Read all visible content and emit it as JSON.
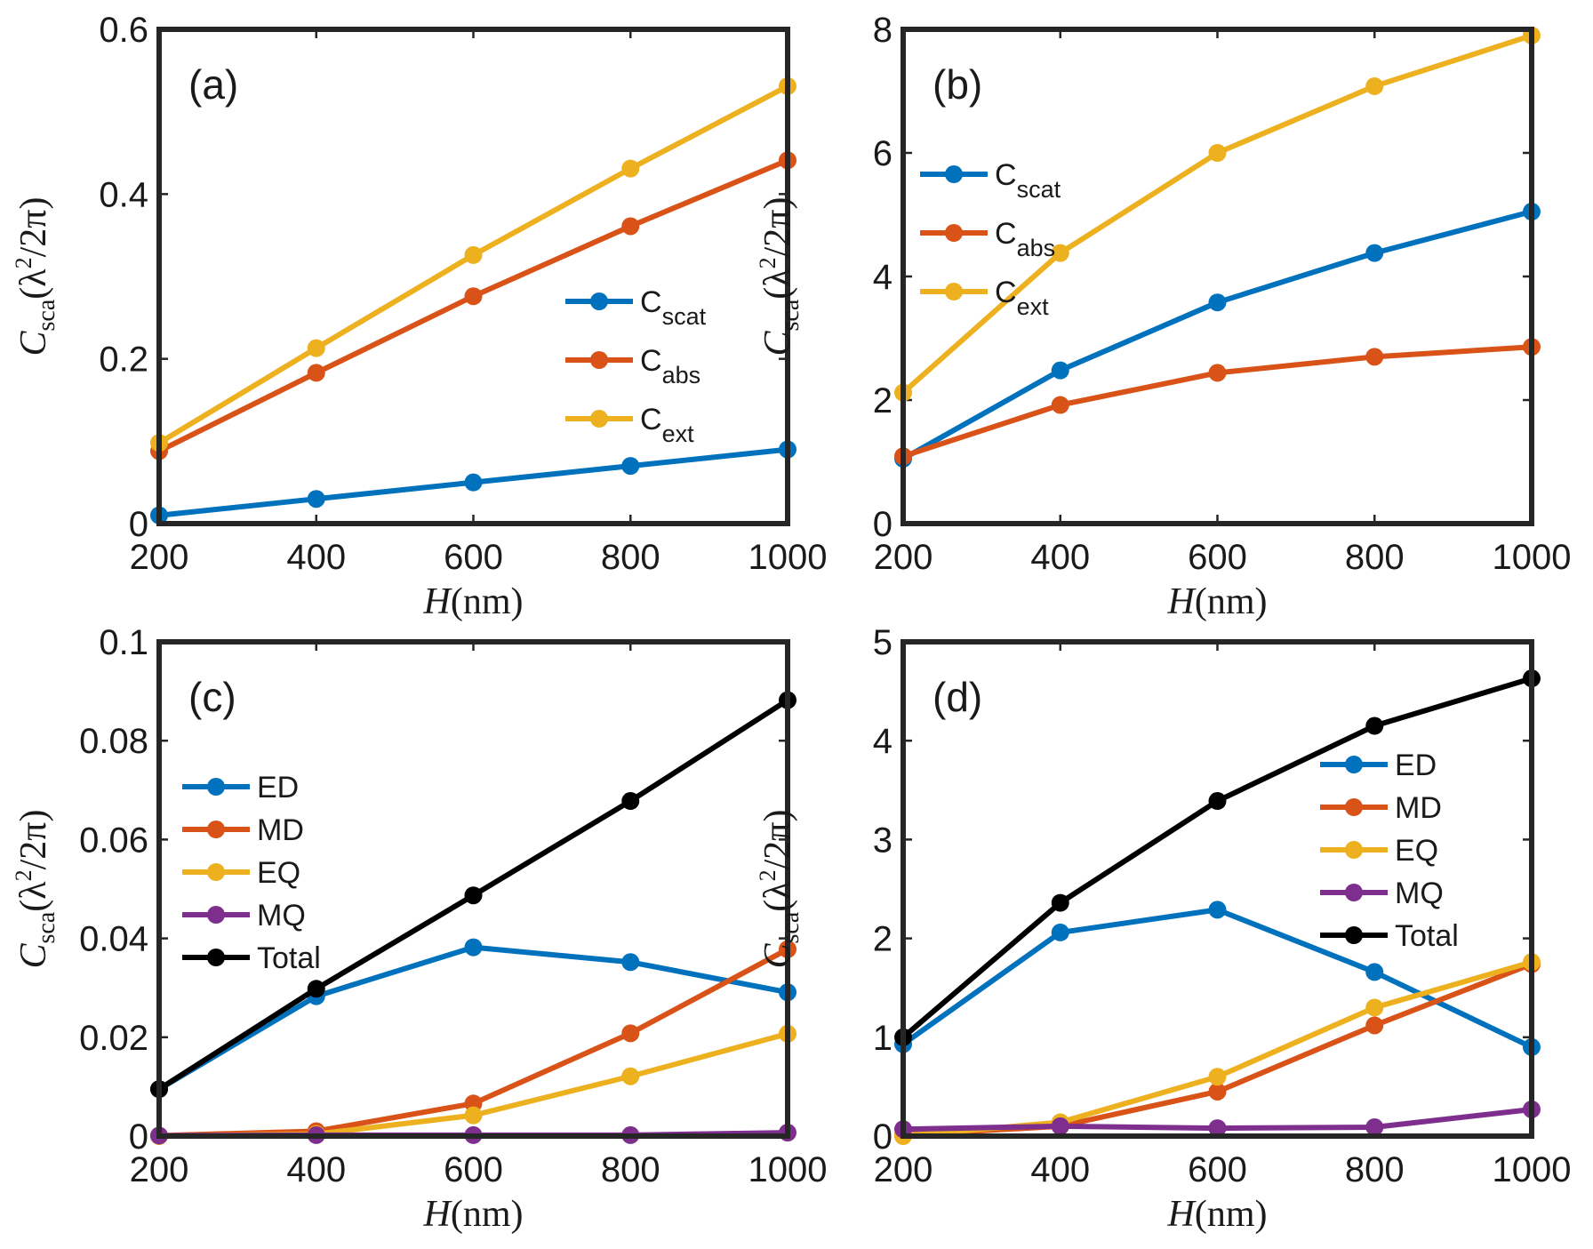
{
  "chart_data": [
    {
      "type": "line",
      "panel_label": "(a)",
      "x": [
        200,
        400,
        600,
        800,
        1000
      ],
      "xlim": [
        200,
        1000
      ],
      "ylim": [
        0,
        0.6
      ],
      "xticks": [
        "200",
        "400",
        "600",
        "800",
        "1000"
      ],
      "yticks": [
        {
          "v": 0,
          "t": "0"
        },
        {
          "v": 0.2,
          "t": "0.2"
        },
        {
          "v": 0.4,
          "t": "0.4"
        },
        {
          "v": 0.6,
          "t": "0.6"
        }
      ],
      "xlabel": {
        "var": "H",
        "unit": "(nm)"
      },
      "ylabel": {
        "var": "C",
        "sub": "sca",
        "unit_open": "(λ",
        "sup": "2",
        "unit_close": "/2π)"
      },
      "legend_style": "sub",
      "legend_position": "center-right",
      "series": [
        {
          "name": "Cscat",
          "base": "C",
          "sub": "scat",
          "color": "#0072BD",
          "values": [
            0.01,
            0.03,
            0.05,
            0.07,
            0.09
          ]
        },
        {
          "name": "Cabs",
          "base": "C",
          "sub": "abs",
          "color": "#D95319",
          "values": [
            0.088,
            0.183,
            0.276,
            0.361,
            0.441
          ]
        },
        {
          "name": "Cext",
          "base": "C",
          "sub": "ext",
          "color": "#EDB120",
          "values": [
            0.098,
            0.213,
            0.326,
            0.431,
            0.531
          ]
        }
      ]
    },
    {
      "type": "line",
      "panel_label": "(b)",
      "x": [
        200,
        400,
        600,
        800,
        1000
      ],
      "xlim": [
        200,
        1000
      ],
      "ylim": [
        0,
        8
      ],
      "xticks": [
        "200",
        "400",
        "600",
        "800",
        "1000"
      ],
      "yticks": [
        {
          "v": 0,
          "t": "0"
        },
        {
          "v": 2,
          "t": "2"
        },
        {
          "v": 4,
          "t": "4"
        },
        {
          "v": 6,
          "t": "6"
        },
        {
          "v": 8,
          "t": "8"
        }
      ],
      "xlabel": {
        "var": "H",
        "unit": "(nm)"
      },
      "ylabel": {
        "var": "C",
        "sub": "sca",
        "unit_open": "(λ",
        "sup": "2",
        "unit_close": "/2π)"
      },
      "legend_style": "sub",
      "legend_position": "upper-left",
      "series": [
        {
          "name": "Cscat",
          "base": "C",
          "sub": "scat",
          "color": "#0072BD",
          "values": [
            1.05,
            2.48,
            3.58,
            4.38,
            5.05
          ]
        },
        {
          "name": "Cabs",
          "base": "C",
          "sub": "abs",
          "color": "#D95319",
          "values": [
            1.09,
            1.92,
            2.44,
            2.7,
            2.86
          ]
        },
        {
          "name": "Cext",
          "base": "C",
          "sub": "ext",
          "color": "#EDB120",
          "values": [
            2.12,
            4.38,
            6.0,
            7.08,
            7.9
          ]
        }
      ]
    },
    {
      "type": "line",
      "panel_label": "(c)",
      "x": [
        200,
        400,
        600,
        800,
        1000
      ],
      "xlim": [
        200,
        1000
      ],
      "ylim": [
        0,
        0.1
      ],
      "xticks": [
        "200",
        "400",
        "600",
        "800",
        "1000"
      ],
      "yticks": [
        {
          "v": 0,
          "t": "0"
        },
        {
          "v": 0.02,
          "t": "0.02"
        },
        {
          "v": 0.04,
          "t": "0.04"
        },
        {
          "v": 0.06,
          "t": "0.06"
        },
        {
          "v": 0.08,
          "t": "0.08"
        },
        {
          "v": 0.1,
          "t": "0.1"
        }
      ],
      "xlabel": {
        "var": "H",
        "unit": "(nm)"
      },
      "ylabel": {
        "var": "C",
        "sub": "sca",
        "unit_open": "(λ",
        "sup": "2",
        "unit_close": "/2π)"
      },
      "legend_style": "plain",
      "legend_position": "center-left",
      "series": [
        {
          "name": "ED",
          "color": "#0072BD",
          "values": [
            0.0095,
            0.0283,
            0.0382,
            0.0352,
            0.0291
          ]
        },
        {
          "name": "MD",
          "color": "#D95319",
          "values": [
            0.0001,
            0.001,
            0.0066,
            0.0208,
            0.0378
          ]
        },
        {
          "name": "EQ",
          "color": "#EDB120",
          "values": [
            0.0,
            0.0004,
            0.0042,
            0.0121,
            0.0207
          ]
        },
        {
          "name": "MQ",
          "color": "#7E2F8E",
          "values": [
            0.0001,
            0.0002,
            0.0002,
            0.0002,
            0.0007
          ]
        },
        {
          "name": "Total",
          "color": "#000000",
          "values": [
            0.0095,
            0.0298,
            0.0487,
            0.0678,
            0.0882
          ]
        }
      ]
    },
    {
      "type": "line",
      "panel_label": "(d)",
      "x": [
        200,
        400,
        600,
        800,
        1000
      ],
      "xlim": [
        200,
        1000
      ],
      "ylim": [
        0,
        5
      ],
      "xticks": [
        "200",
        "400",
        "600",
        "800",
        "1000"
      ],
      "yticks": [
        {
          "v": 0,
          "t": "0"
        },
        {
          "v": 1,
          "t": "1"
        },
        {
          "v": 2,
          "t": "2"
        },
        {
          "v": 3,
          "t": "3"
        },
        {
          "v": 4,
          "t": "4"
        },
        {
          "v": 5,
          "t": "5"
        }
      ],
      "xlabel": {
        "var": "H",
        "unit": "(nm)"
      },
      "ylabel": {
        "var": "C",
        "sub": "sca",
        "unit_open": "(λ",
        "sup": "2",
        "unit_close": "/2π)"
      },
      "legend_style": "plain",
      "legend_position": "right",
      "series": [
        {
          "name": "ED",
          "color": "#0072BD",
          "values": [
            0.93,
            2.06,
            2.29,
            1.66,
            0.9
          ]
        },
        {
          "name": "MD",
          "color": "#D95319",
          "values": [
            0.01,
            0.1,
            0.45,
            1.12,
            1.74
          ]
        },
        {
          "name": "EQ",
          "color": "#EDB120",
          "values": [
            0.0,
            0.14,
            0.6,
            1.3,
            1.76
          ]
        },
        {
          "name": "MQ",
          "color": "#7E2F8E",
          "values": [
            0.07,
            0.1,
            0.08,
            0.09,
            0.27
          ]
        },
        {
          "name": "Total",
          "color": "#000000",
          "values": [
            1.0,
            2.36,
            3.39,
            4.15,
            4.63
          ]
        }
      ]
    }
  ]
}
